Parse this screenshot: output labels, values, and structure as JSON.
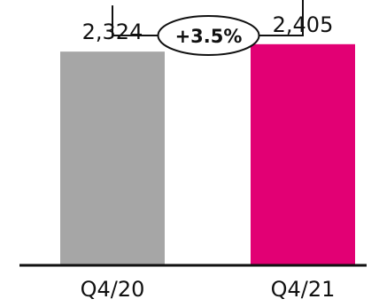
{
  "chart_data": {
    "type": "bar",
    "categories": [
      "Q4/20",
      "Q4/21"
    ],
    "values": [
      2324,
      2405
    ],
    "value_labels": [
      "2,324",
      "2,405"
    ],
    "colors": [
      "#a6a6a6",
      "#e20074"
    ],
    "ylim": [
      0,
      2500
    ],
    "grid": false,
    "annotation": {
      "text": "+3.5%",
      "from": "Q4/20",
      "to": "Q4/21"
    }
  }
}
